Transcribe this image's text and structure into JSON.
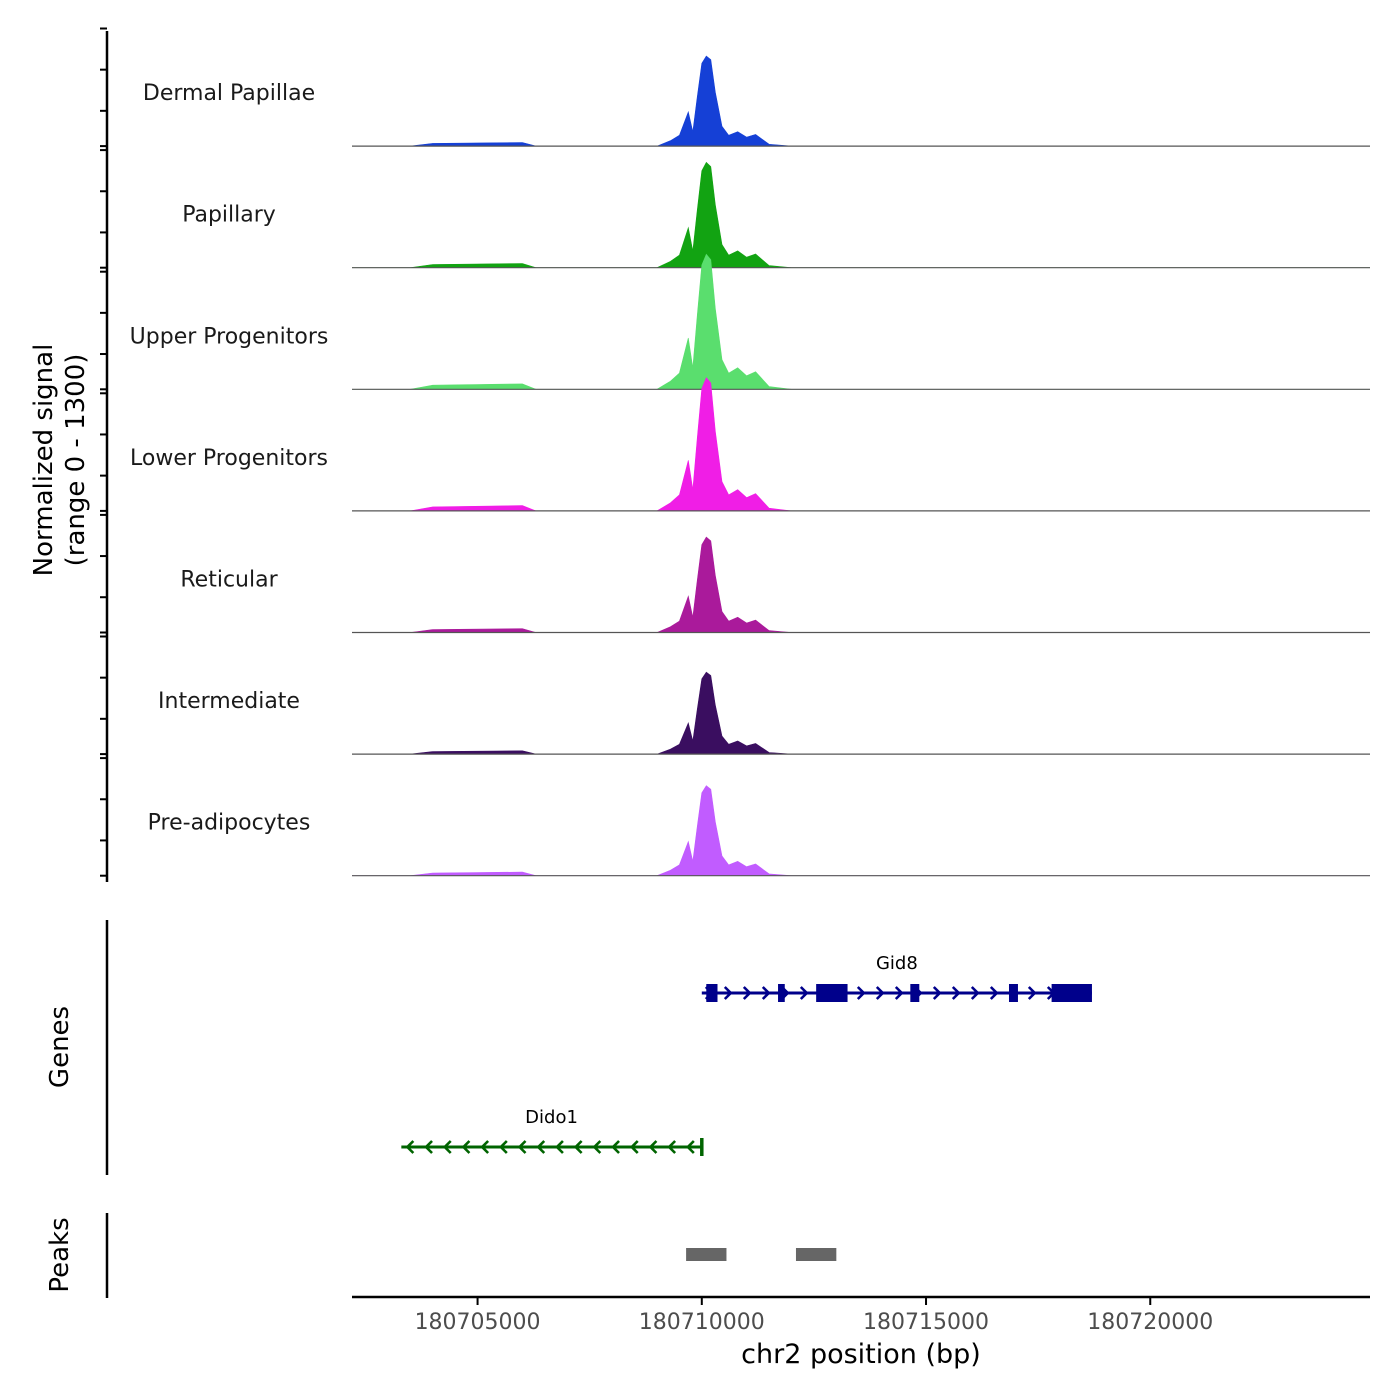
{
  "chart_data": {
    "type": "area",
    "title": "",
    "ylabel_line1": "Normalized signal",
    "ylabel_line2": "(range 0 - 1300)",
    "xlabel": "chr2 position (bp)",
    "x_range": [
      180702200,
      180724900
    ],
    "x_ticks": [
      180705000,
      180710000,
      180715000,
      180720000
    ],
    "x_tick_labels": [
      "180705000",
      "180710000",
      "180715000",
      "180720000"
    ],
    "y_range": [
      0,
      1300
    ],
    "peak_profile": {
      "x": [
        180702200,
        180703500,
        180704000,
        180706000,
        180706300,
        180709000,
        180709300,
        180709500,
        180709700,
        180709800,
        180709900,
        180710000,
        180710100,
        180710200,
        180710300,
        180710450,
        180710600,
        180710800,
        180711000,
        180711200,
        180711500,
        180712000,
        180724900
      ],
      "relative_height": [
        0,
        0,
        0.03,
        0.04,
        0,
        0,
        0.06,
        0.12,
        0.38,
        0.16,
        0.55,
        0.92,
        1.0,
        0.96,
        0.6,
        0.22,
        0.12,
        0.16,
        0.1,
        0.13,
        0.02,
        0,
        0
      ]
    },
    "series": [
      {
        "name": "Dermal Papillae",
        "color": "#1540d6",
        "max_signal": 1000
      },
      {
        "name": "Papillary",
        "color": "#12a312",
        "max_signal": 1170
      },
      {
        "name": "Upper Progenitors",
        "color": "#5ade6e",
        "max_signal": 1500
      },
      {
        "name": "Lower Progenitors",
        "color": "#f01ee6",
        "max_signal": 1480
      },
      {
        "name": "Reticular",
        "color": "#aa1a9b",
        "max_signal": 1060
      },
      {
        "name": "Intermediate",
        "color": "#3a0e60",
        "max_signal": 910
      },
      {
        "name": "Pre-adipocytes",
        "color": "#c15cff",
        "max_signal": 1000
      }
    ],
    "genes": [
      {
        "name": "Gid8",
        "strand": "+",
        "start": 180710000,
        "end": 180718700,
        "color": "#00008b",
        "exons": [
          [
            180710100,
            180710350
          ],
          [
            180711700,
            180711850
          ],
          [
            180712550,
            180713250
          ],
          [
            180714650,
            180714850
          ],
          [
            180716850,
            180717050
          ],
          [
            180717800,
            180718700
          ]
        ]
      },
      {
        "name": "Dido1",
        "strand": "-",
        "start": 180703300,
        "end": 180710000,
        "color": "#006400",
        "exons": []
      }
    ],
    "peaks": [
      [
        180709650,
        180710550
      ],
      [
        180712100,
        180713000
      ]
    ],
    "peak_color": "#666666",
    "panel_labels": {
      "genes": "Genes",
      "peaks": "Peaks"
    }
  }
}
